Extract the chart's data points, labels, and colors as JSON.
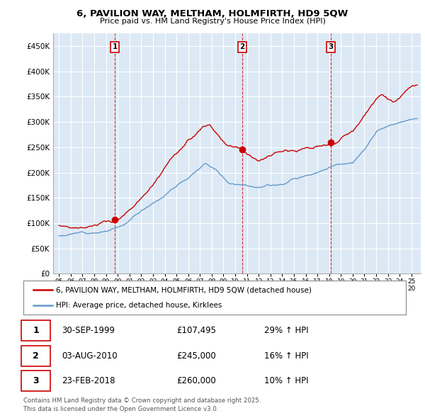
{
  "title": "6, PAVILION WAY, MELTHAM, HOLMFIRTH, HD9 5QW",
  "subtitle": "Price paid vs. HM Land Registry's House Price Index (HPI)",
  "background_color": "#ffffff",
  "plot_bg_color": "#dce9f5",
  "grid_color": "#ffffff",
  "red_color": "#cc0000",
  "blue_color": "#6699cc",
  "ylim": [
    0,
    475000
  ],
  "yticks": [
    0,
    50000,
    100000,
    150000,
    200000,
    250000,
    300000,
    350000,
    400000,
    450000
  ],
  "ytick_labels": [
    "£0",
    "£50K",
    "£100K",
    "£150K",
    "£200K",
    "£250K",
    "£300K",
    "£350K",
    "£400K",
    "£450K"
  ],
  "transactions": [
    {
      "label": "1",
      "date_x": 1999.75,
      "price": 107495
    },
    {
      "label": "2",
      "date_x": 2010.58,
      "price": 245000
    },
    {
      "label": "3",
      "date_x": 2018.15,
      "price": 260000
    }
  ],
  "transaction_dates_str": [
    "30-SEP-1999",
    "03-AUG-2010",
    "23-FEB-2018"
  ],
  "transaction_prices_str": [
    "£107,495",
    "£245,000",
    "£260,000"
  ],
  "transaction_hpi_str": [
    "29% ↑ HPI",
    "16% ↑ HPI",
    "10% ↑ HPI"
  ],
  "legend_label_red": "6, PAVILION WAY, MELTHAM, HOLMFIRTH, HD9 5QW (detached house)",
  "legend_label_blue": "HPI: Average price, detached house, Kirklees",
  "footer": "Contains HM Land Registry data © Crown copyright and database right 2025.\nThis data is licensed under the Open Government Licence v3.0.",
  "xmin": 1994.5,
  "xmax": 2025.8
}
